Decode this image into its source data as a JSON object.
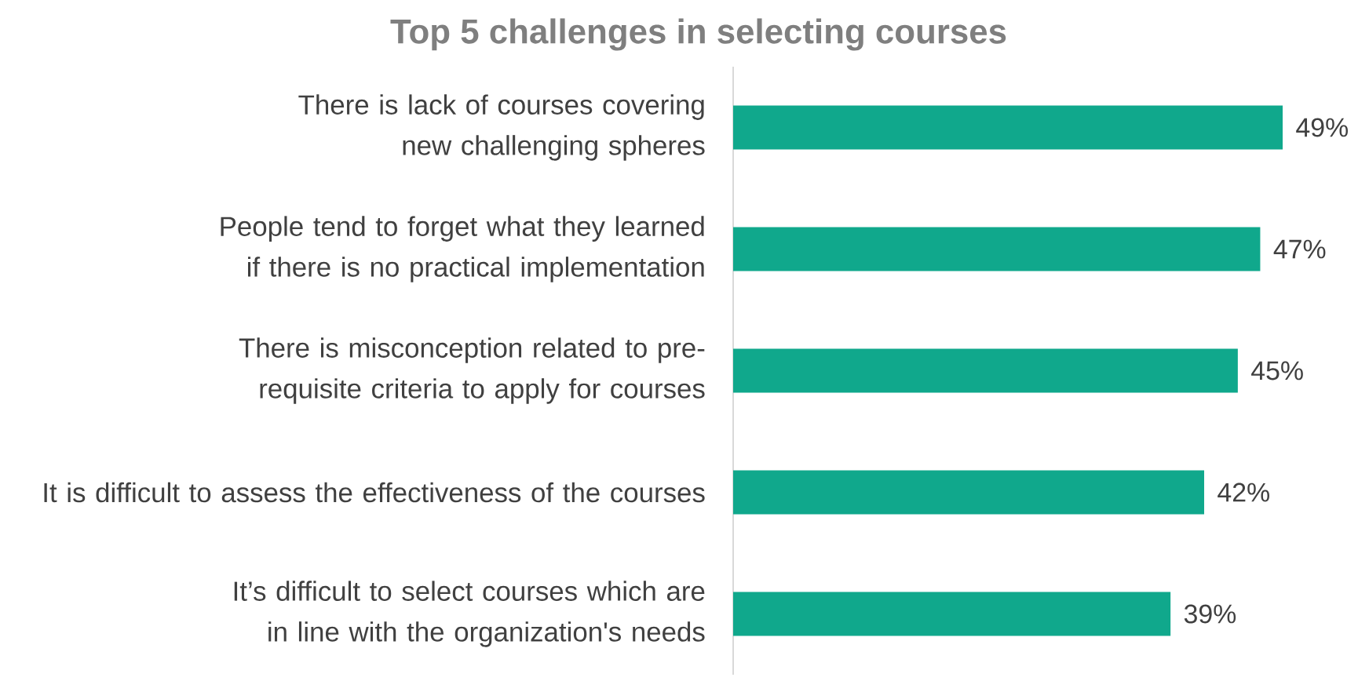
{
  "chart_data": {
    "type": "bar",
    "orientation": "horizontal",
    "title": "Top 5 challenges in selecting courses",
    "categories": [
      "There is lack of courses covering new challenging spheres",
      "People tend to forget what they learned if there is no practical implementation",
      "There is misconception related to pre-requisite criteria to apply for courses",
      "It is difficult to assess the effectiveness of the courses",
      "It’s difficult to select courses which are in line with the organization's needs"
    ],
    "values": [
      49,
      47,
      45,
      42,
      39
    ],
    "value_labels": [
      "49%",
      "47%",
      "45%",
      "42%",
      "39%"
    ],
    "color": "#10a88c"
  }
}
